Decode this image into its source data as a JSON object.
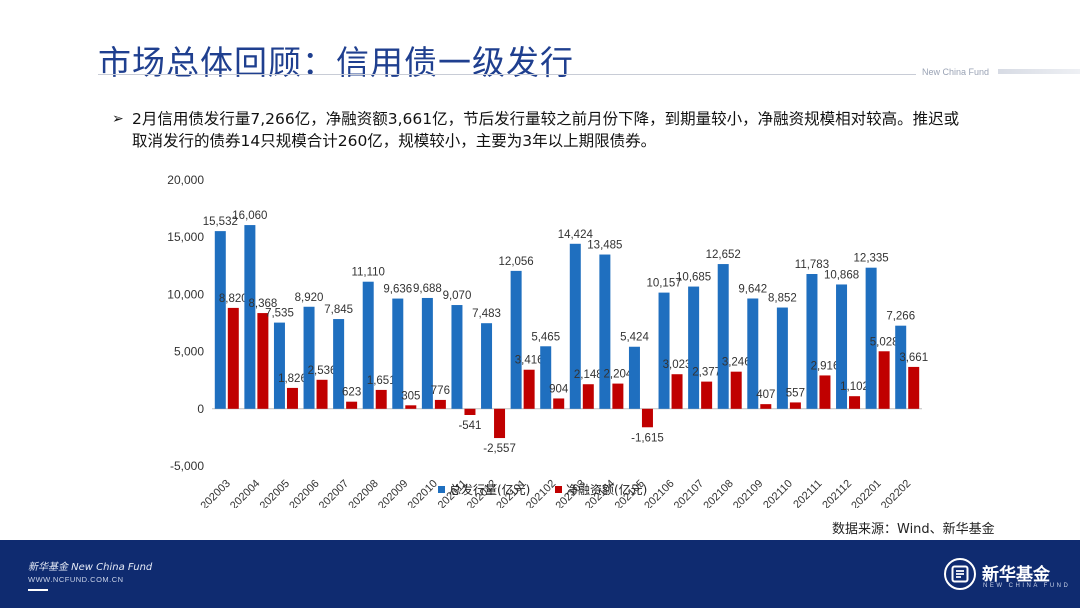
{
  "header": {
    "title": "市场总体回顾：信用债一级发行",
    "brand_en": "New China Fund"
  },
  "bullet": {
    "marker": "➢",
    "text": "2月信用债发行量7,266亿，净融资额3,661亿，节后发行量较之前月份下降，到期量较小，净融资规模相对较高。推迟或取消发行的债券14只规模合计260亿，规模较小，主要为3年以上期限债券。"
  },
  "chart_data": {
    "type": "bar",
    "categories": [
      "202003",
      "202004",
      "202005",
      "202006",
      "202007",
      "202008",
      "202009",
      "202010",
      "202011",
      "202012",
      "202101",
      "202102",
      "202103",
      "202104",
      "202105",
      "202106",
      "202107",
      "202108",
      "202109",
      "202110",
      "202111",
      "202112",
      "202201",
      "202202"
    ],
    "series": [
      {
        "name": "总发行量(亿元)",
        "color": "#1f6fbf",
        "values": [
          15532,
          16060,
          7535,
          8920,
          7845,
          11110,
          9636,
          9688,
          9070,
          7483,
          12056,
          5465,
          14424,
          13485,
          5424,
          10157,
          10685,
          12652,
          9642,
          8852,
          11783,
          10868,
          12335,
          7266
        ],
        "labels": [
          "15,532",
          "16,060",
          "7,535",
          "8,920",
          "7,845",
          "11,110",
          "9,636",
          "9,688",
          "9,070",
          "7,483",
          "12,056",
          "5,465",
          "14,424",
          "13,485",
          "5,424",
          "10,157",
          "10,685",
          "12,652",
          "9,642",
          "8,852",
          "11,783",
          "10,868",
          "12,335",
          "7,266"
        ]
      },
      {
        "name": "净融资额(亿元)",
        "color": "#c00000",
        "values": [
          8820,
          8368,
          1826,
          2536,
          623,
          1651,
          305,
          776,
          -541,
          -2557,
          3416,
          904,
          2148,
          2204,
          -1615,
          3023,
          2377,
          3246,
          407,
          557,
          2916,
          1102,
          5028,
          3661
        ],
        "labels": [
          "8,820",
          "8,368",
          "1,826",
          "2,536",
          "623",
          "1,651",
          "305",
          "776",
          "-541",
          "-2,557",
          "3,416",
          "904",
          "2,148",
          "2,204",
          "-1,615",
          "3,023",
          "2,377",
          "3,246",
          "407",
          "557",
          "2,916",
          "1,102",
          "5,028",
          "3,661"
        ]
      }
    ],
    "ylim": [
      -5000,
      20000
    ],
    "yticks": [
      -5000,
      0,
      5000,
      10000,
      15000,
      20000
    ],
    "ytick_labels": [
      "-5,000",
      "0",
      "5,000",
      "10,000",
      "15,000",
      "20,000"
    ],
    "legend": "bottom"
  },
  "source": "数据来源：Wind、新华基金",
  "footer": {
    "name": "新华基金 New China Fund",
    "url": "WWW.NCFUND.COM.CN",
    "logo_cn": "新华基金",
    "logo_en": "NEW CHINA FUND"
  }
}
